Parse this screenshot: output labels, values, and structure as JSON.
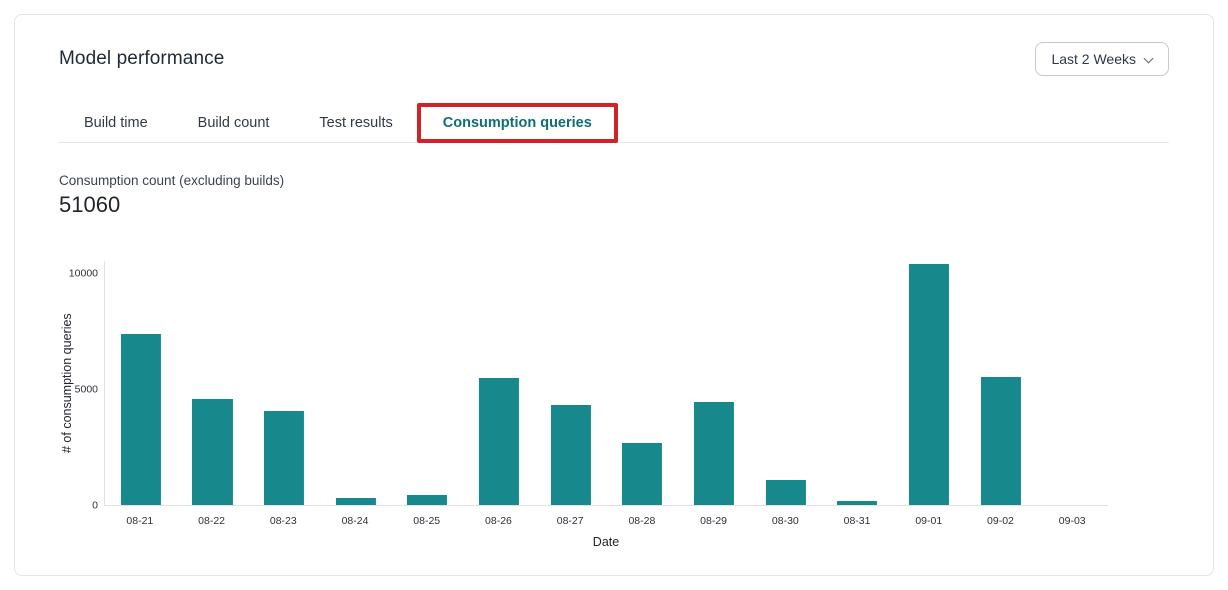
{
  "card": {
    "title": "Model performance",
    "date_range": {
      "value": "Last 2 Weeks",
      "icon": "chevron-down"
    }
  },
  "tabs": [
    {
      "label": "Build time",
      "active": false,
      "highlighted": false
    },
    {
      "label": "Build count",
      "active": false,
      "highlighted": false
    },
    {
      "label": "Test results",
      "active": false,
      "highlighted": false
    },
    {
      "label": "Consumption queries",
      "active": true,
      "highlighted": true
    }
  ],
  "metric": {
    "label": "Consumption count (excluding builds)",
    "value": "51060"
  },
  "chart_data": {
    "type": "bar",
    "title": "",
    "categories": [
      "08-21",
      "08-22",
      "08-23",
      "08-24",
      "08-25",
      "08-26",
      "08-27",
      "08-28",
      "08-29",
      "08-30",
      "08-31",
      "09-01",
      "09-02",
      "09-03"
    ],
    "values": [
      7400,
      4600,
      4050,
      300,
      430,
      5500,
      4350,
      2700,
      4450,
      1100,
      180,
      10450,
      5550,
      0
    ],
    "xlabel": "Date",
    "ylabel": "# of consumption queries",
    "yticks": [
      0,
      5000,
      10000
    ],
    "ylim": [
      0,
      10560
    ],
    "grid": false,
    "legend": false,
    "bar_color": "#17898d"
  },
  "colors": {
    "bar_teal": "#17898d",
    "active_tab_teal": "#0e6e74",
    "highlight_red": "#d02227",
    "text_dark": "#1f2a37",
    "text_muted": "#3a4350",
    "card_border": "#e4e5e7",
    "axis_line": "#e0e2e5"
  }
}
